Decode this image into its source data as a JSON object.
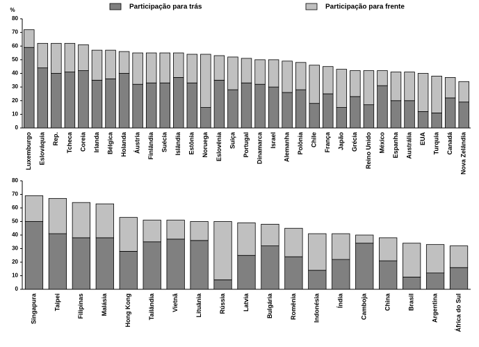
{
  "chart_data": [
    {
      "type": "bar",
      "stacked": true,
      "y_label": "%",
      "categories": [
        "Luxemburgo",
        "Eslováquia",
        "Rep.",
        "Tcheca",
        "Coreia",
        "Irlanda",
        "Bélgica",
        "Holanda",
        "Áustria",
        "Finlândia",
        "Suécia",
        "Islândia",
        "Estônia",
        "Noruega",
        "Eslovênia",
        "Suíça",
        "Portugal",
        "Dinamarca",
        "Israel",
        "Alemanha",
        "Polônia",
        "Chile",
        "França",
        "Japão",
        "Grécia",
        "Reino Unido",
        "México",
        "Espanha",
        "Austrália",
        "EUA",
        "Turquia",
        "Canadá",
        "Nova Zelândia"
      ],
      "series": [
        {
          "name": "Participação para trás",
          "color": "#808080",
          "values": [
            59,
            44,
            40,
            41,
            42,
            35,
            36,
            40,
            32,
            33,
            33,
            37,
            33,
            15,
            35,
            28,
            33,
            32,
            30,
            26,
            28,
            18,
            25,
            15,
            23,
            17,
            31,
            20,
            20,
            12,
            11,
            22,
            19
          ]
        },
        {
          "name": "Participação para frente",
          "color": "#c0c0c0",
          "values": [
            13,
            18,
            22,
            21,
            19,
            22,
            21,
            16,
            23,
            22,
            22,
            18,
            21,
            39,
            18,
            24,
            18,
            18,
            20,
            23,
            20,
            28,
            20,
            28,
            19,
            25,
            11,
            21,
            21,
            28,
            27,
            15,
            15
          ]
        }
      ],
      "ylim": [
        0,
        80
      ],
      "yticks": [
        0,
        10,
        20,
        30,
        40,
        50,
        60,
        70,
        80
      ],
      "legend": "top"
    },
    {
      "type": "bar",
      "stacked": true,
      "categories": [
        "Singapura",
        "Taipei",
        "Filipinas",
        "Malásia",
        "Hong Kong",
        "Tailândia",
        "Vietnã",
        "Lituânia",
        "Rússia",
        "Latvia",
        "Bulgária",
        "Romênia",
        "Indonésia",
        "Índia",
        "Camboja",
        "China",
        "Brasil",
        "Argentina",
        "África do Sul"
      ],
      "series": [
        {
          "color": "#808080",
          "values": [
            50,
            41,
            38,
            38,
            28,
            35,
            37,
            36,
            7,
            25,
            32,
            24,
            14,
            22,
            34,
            21,
            9,
            12,
            16
          ]
        },
        {
          "color": "#c0c0c0",
          "values": [
            19,
            26,
            26,
            25,
            25,
            16,
            14,
            14,
            43,
            24,
            16,
            21,
            27,
            19,
            6,
            17,
            25,
            21,
            16
          ]
        }
      ],
      "ylim": [
        0,
        80
      ],
      "yticks": [
        0,
        10,
        20,
        30,
        40,
        50,
        60,
        70,
        80
      ]
    }
  ]
}
